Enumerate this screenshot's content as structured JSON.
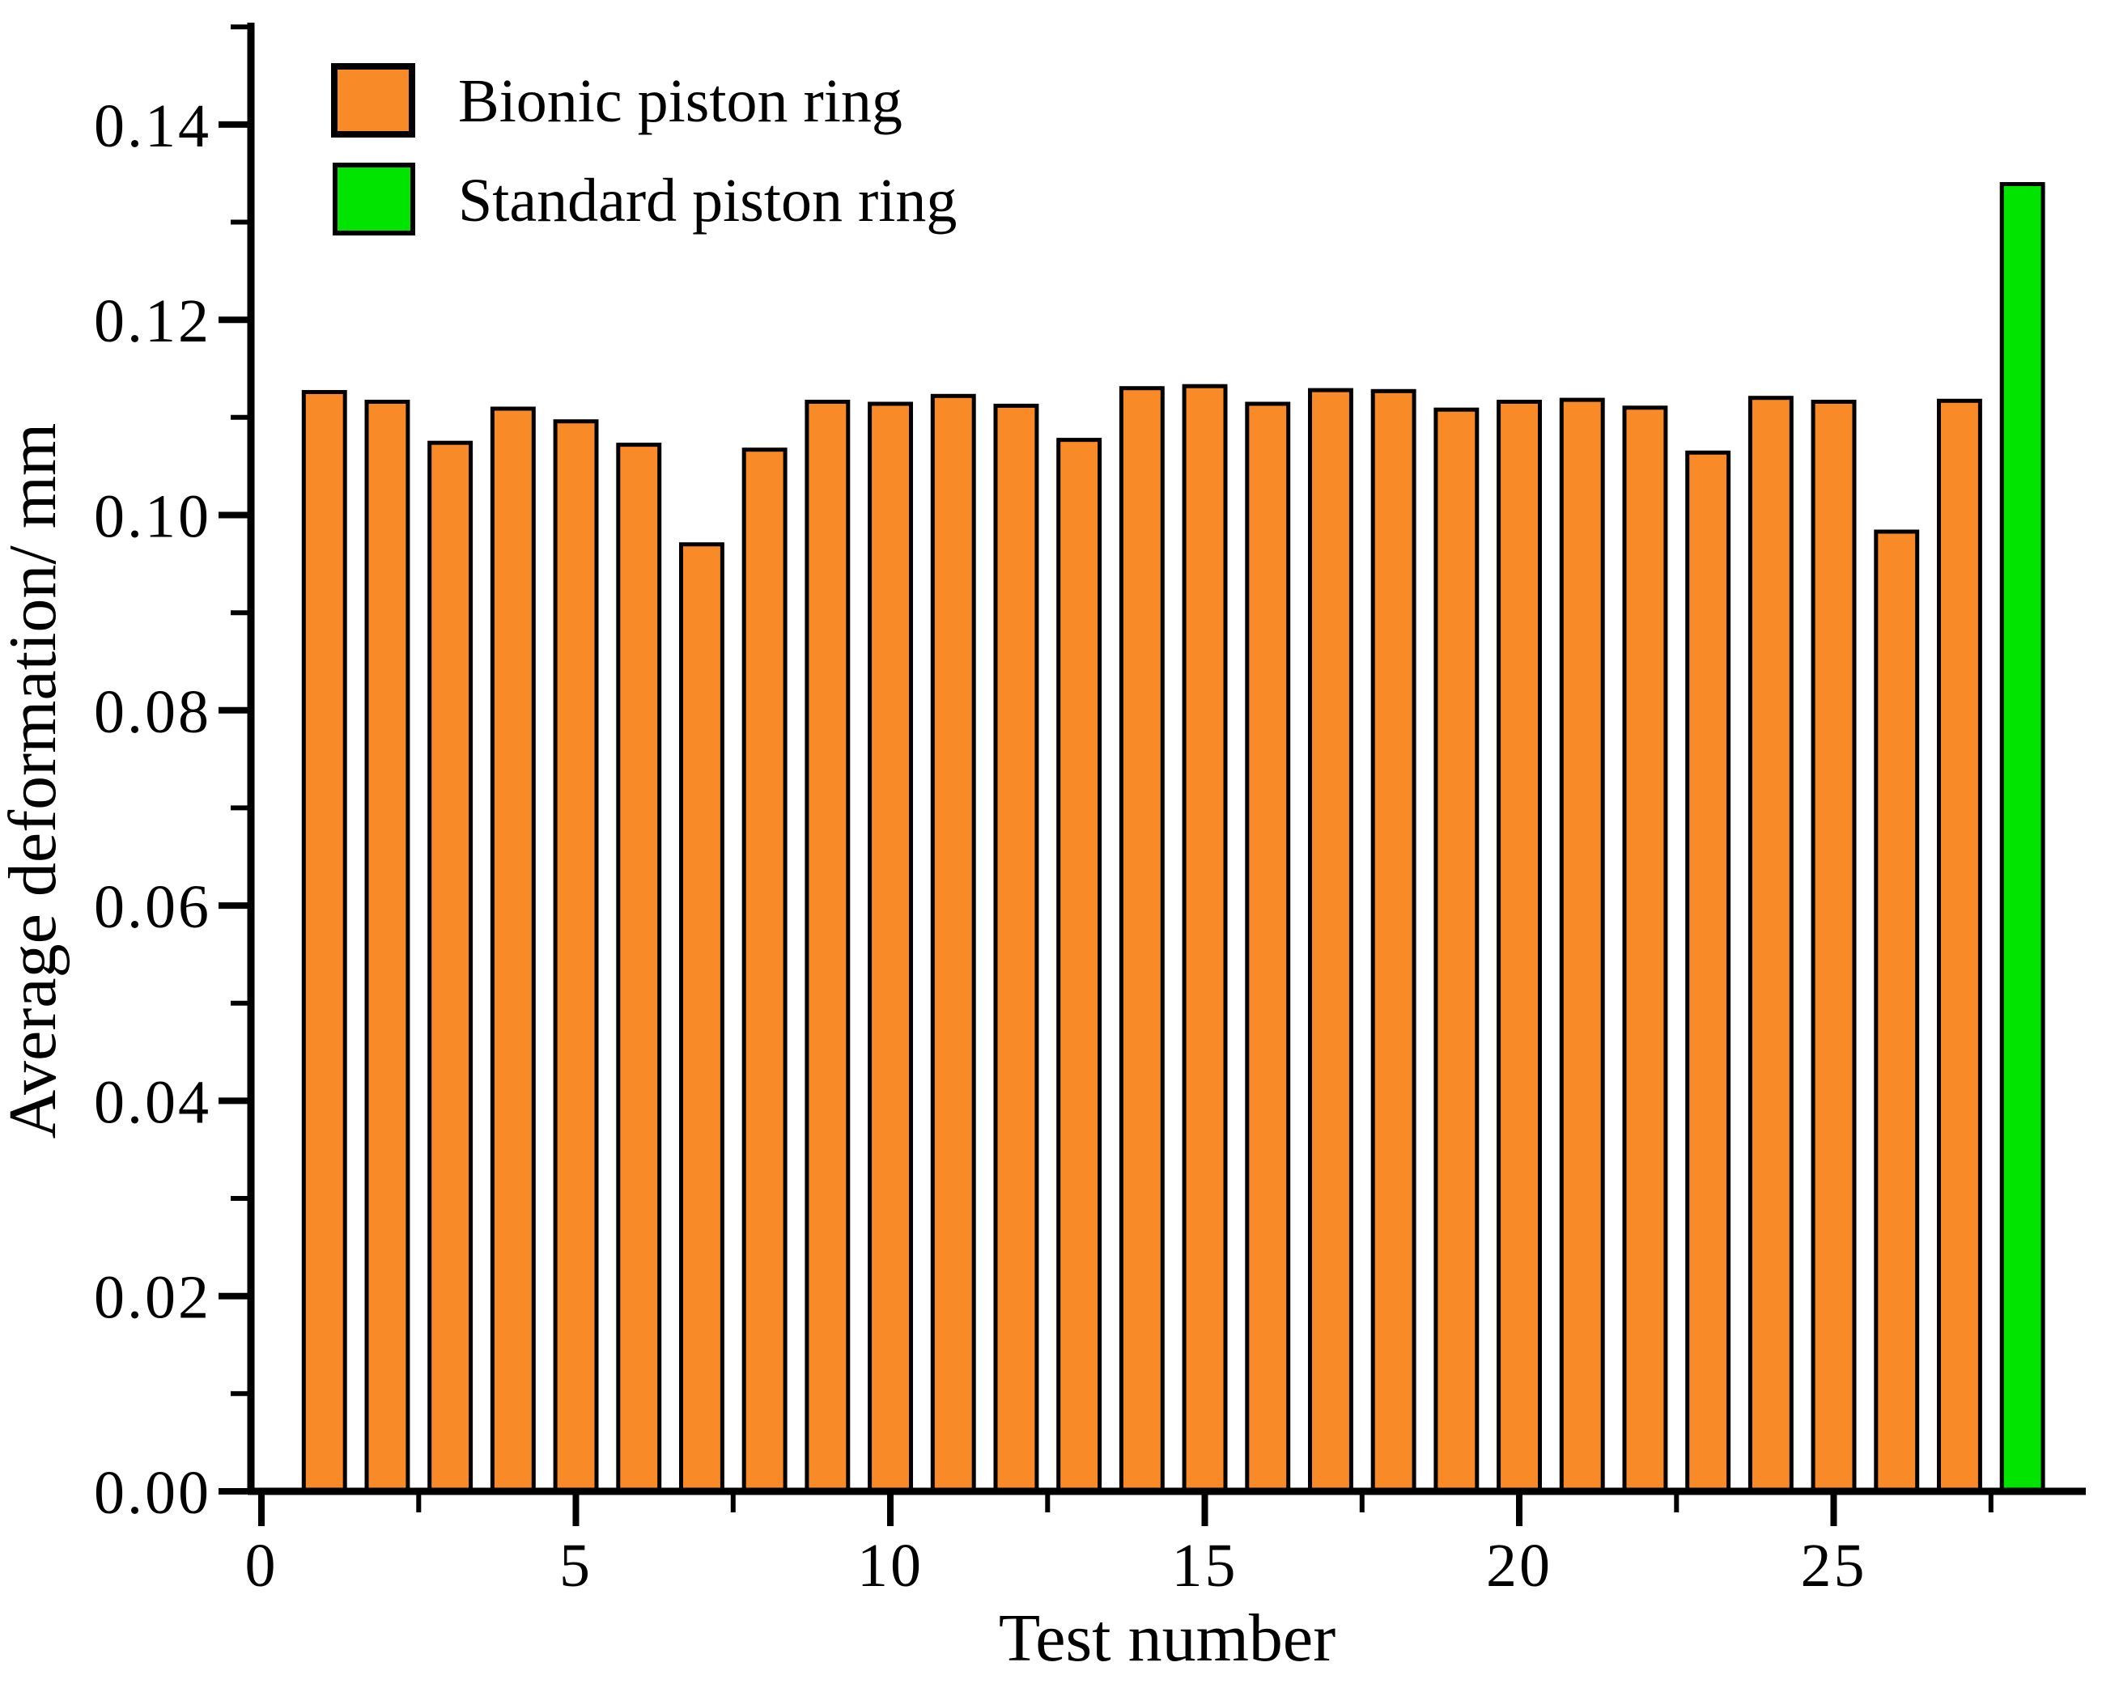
{
  "figure": {
    "background": "#ffffff",
    "axis_color": "#000000"
  },
  "chart_data": {
    "type": "bar",
    "title": "",
    "xlabel": "Test number",
    "ylabel": "Average deformation/ mm",
    "xlim": [
      0,
      29
    ],
    "ylim": [
      0,
      0.15
    ],
    "grid": false,
    "legend_position": "top-left-inside",
    "bar_width": 0.655,
    "bar_outline_color": "#000000",
    "x_major_ticks": [
      {
        "v": 0,
        "label": "0"
      },
      {
        "v": 5,
        "label": "5"
      },
      {
        "v": 10,
        "label": "10"
      },
      {
        "v": 15,
        "label": "15"
      },
      {
        "v": 20,
        "label": "20"
      },
      {
        "v": 25,
        "label": "25"
      }
    ],
    "x_minor_ticks": [
      2.5,
      7.5,
      12.5,
      17.5,
      22.5,
      27.5
    ],
    "y_major_ticks": [
      {
        "v": 0.0,
        "label": "0.00"
      },
      {
        "v": 0.02,
        "label": "0.02"
      },
      {
        "v": 0.04,
        "label": "0.04"
      },
      {
        "v": 0.06,
        "label": "0.06"
      },
      {
        "v": 0.08,
        "label": "0.08"
      },
      {
        "v": 0.1,
        "label": "0.10"
      },
      {
        "v": 0.12,
        "label": "0.12"
      },
      {
        "v": 0.14,
        "label": "0.14"
      }
    ],
    "y_minor_ticks": [
      0.01,
      0.03,
      0.05,
      0.07,
      0.09,
      0.11,
      0.13,
      0.15
    ],
    "series": [
      {
        "name": "Bionic piston ring",
        "color": "#f98a28",
        "x": [
          1,
          2,
          3,
          4,
          5,
          6,
          7,
          8,
          9,
          10,
          11,
          12,
          13,
          14,
          15,
          16,
          17,
          18,
          19,
          20,
          21,
          22,
          23,
          24,
          25,
          26,
          27
        ],
        "values": [
          0.1126,
          0.1116,
          0.1074,
          0.1109,
          0.1096,
          0.1072,
          0.097,
          0.1067,
          0.1116,
          0.1114,
          0.1122,
          0.1112,
          0.1077,
          0.113,
          0.1132,
          0.1114,
          0.1128,
          0.1127,
          0.1108,
          0.1116,
          0.1118,
          0.111,
          0.1064,
          0.112,
          0.1116,
          0.0983,
          0.1117
        ]
      },
      {
        "name": "Standard piston ring",
        "color": "#00e400",
        "x": [
          28
        ],
        "values": [
          0.1339
        ]
      }
    ]
  }
}
